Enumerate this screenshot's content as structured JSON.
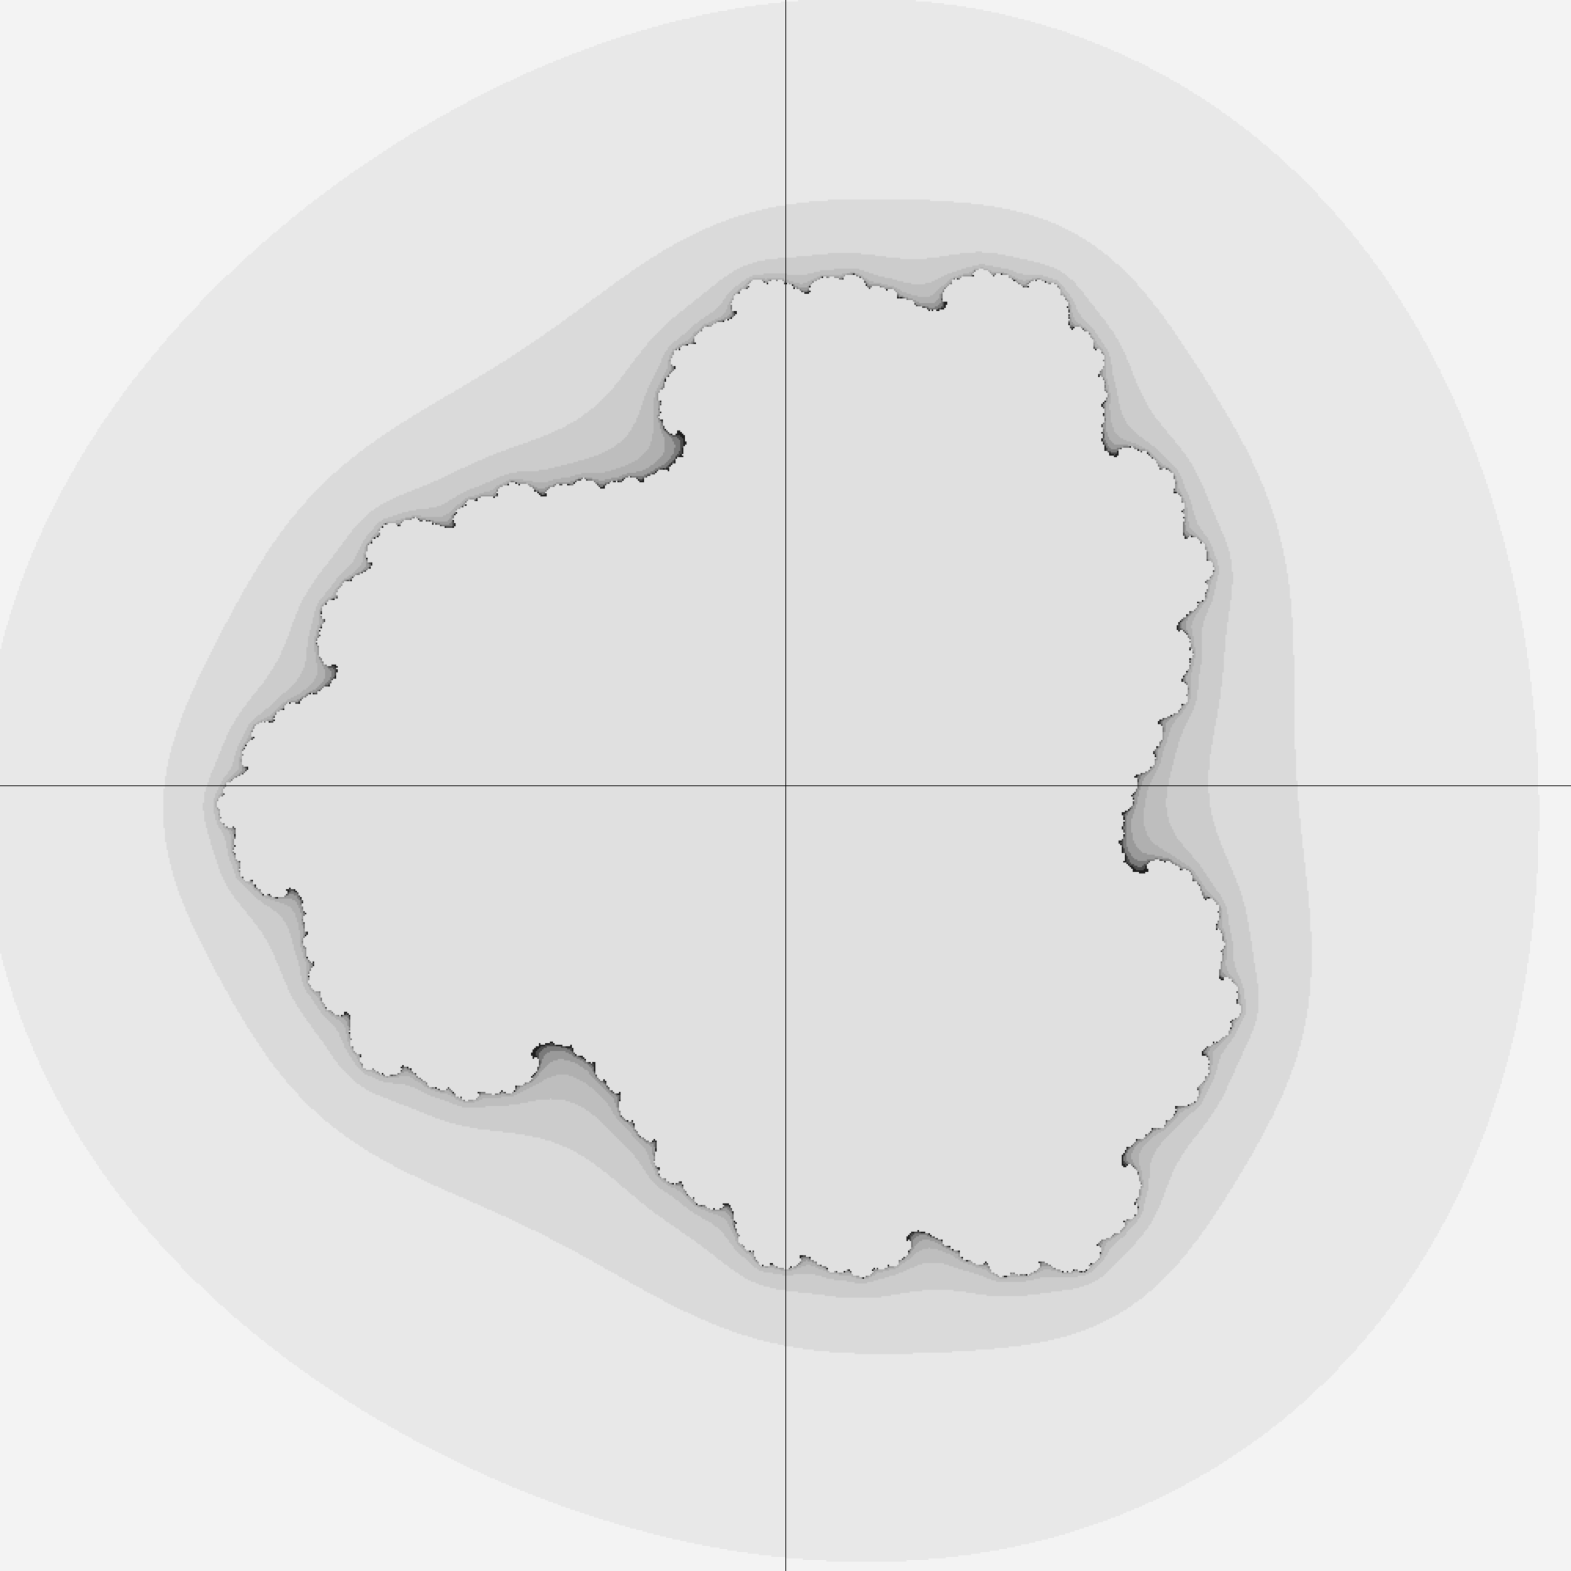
{
  "figure": {
    "kind": "julia-set-escape-time-render",
    "colors": {
      "background": "#ffffff",
      "axis": "#000000",
      "palette": [
        "#f3f3f3",
        "#e8e8e8",
        "#dadada",
        "#cccccc",
        "#bebebe",
        "#b0b0b0",
        "#9a9a9a",
        "#7a7a7a",
        "#4a4a4a",
        "#1e1e1e",
        "#e0e0e0"
      ]
    }
  }
}
